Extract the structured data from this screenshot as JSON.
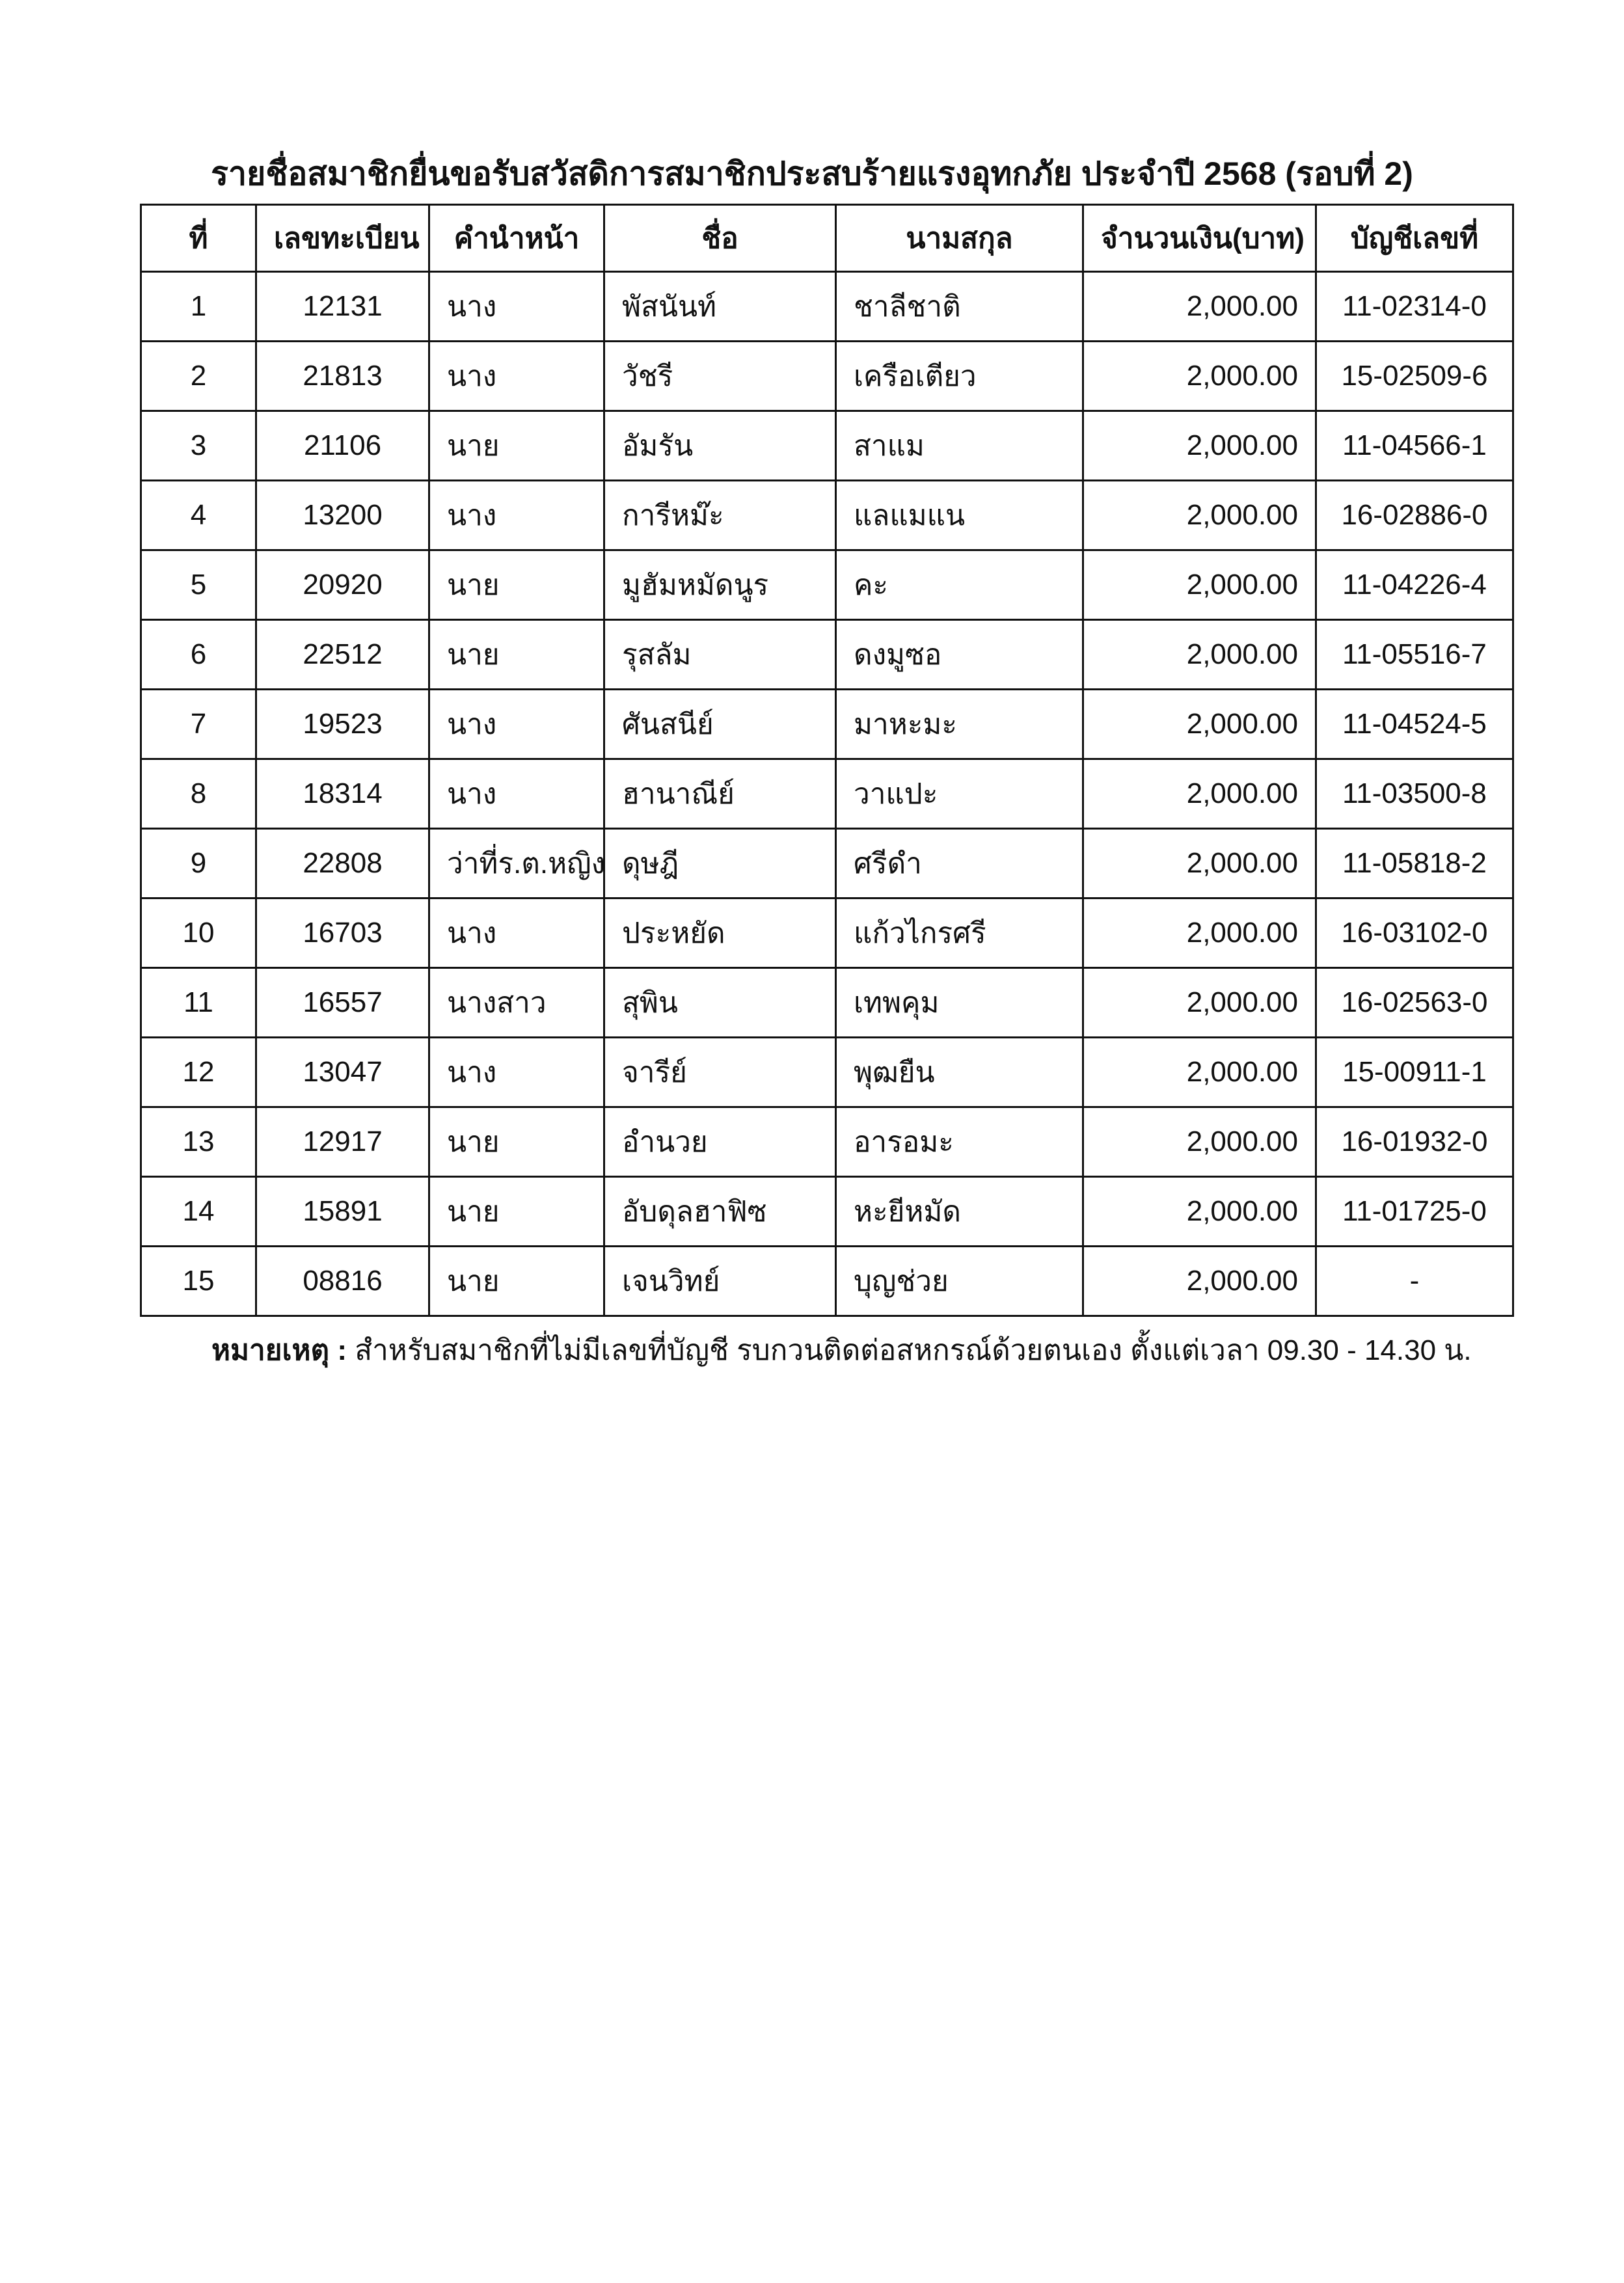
{
  "title": "รายชื่อสมาชิกยื่นขอรับสวัสดิการสมาชิกประสบร้ายแรงอุทกภัย ประจำปี 2568 (รอบที่ 2)",
  "table": {
    "headers": [
      "ที่",
      "เลขทะเบียน",
      "คำนำหน้า",
      "ชื่อ",
      "นามสกุล",
      "จำนวนเงิน(บาท)",
      "บัญชีเลขที่"
    ],
    "rows": [
      [
        "1",
        "12131",
        "นาง",
        "พัสนันท์",
        "ชาลีชาติ",
        "2,000.00",
        "11-02314-0"
      ],
      [
        "2",
        "21813",
        "นาง",
        "วัชรี",
        "เครือเตียว",
        "2,000.00",
        "15-02509-6"
      ],
      [
        "3",
        "21106",
        "นาย",
        "อัมรัน",
        "สาแม",
        "2,000.00",
        "11-04566-1"
      ],
      [
        "4",
        "13200",
        "นาง",
        "การีหม๊ะ",
        "แลแมแน",
        "2,000.00",
        "16-02886-0"
      ],
      [
        "5",
        "20920",
        "นาย",
        "มูฮัมหมัดนูร",
        "คะ",
        "2,000.00",
        "11-04226-4"
      ],
      [
        "6",
        "22512",
        "นาย",
        "รุสลัม",
        "ดงมูซอ",
        "2,000.00",
        "11-05516-7"
      ],
      [
        "7",
        "19523",
        "นาง",
        "ศันสนีย์",
        "มาหะมะ",
        "2,000.00",
        "11-04524-5"
      ],
      [
        "8",
        "18314",
        "นาง",
        "ฮานาณีย์",
        "วาแปะ",
        "2,000.00",
        "11-03500-8"
      ],
      [
        "9",
        "22808",
        "ว่าที่ร.ต.หญิง",
        "ดุษฎี",
        "ศรีดำ",
        "2,000.00",
        "11-05818-2"
      ],
      [
        "10",
        "16703",
        "นาง",
        "ประหยัด",
        "แก้วไกรศรี",
        "2,000.00",
        "16-03102-0"
      ],
      [
        "11",
        "16557",
        "นางสาว",
        "สุพิน",
        "เทพคุม",
        "2,000.00",
        "16-02563-0"
      ],
      [
        "12",
        "13047",
        "นาง",
        "จารีย์",
        "พุฒยืน",
        "2,000.00",
        "15-00911-1"
      ],
      [
        "13",
        "12917",
        "นาย",
        "อำนวย",
        "อารอมะ",
        "2,000.00",
        "16-01932-0"
      ],
      [
        "14",
        "15891",
        "นาย",
        "อับดุลฮาฟิซ",
        "หะยีหมัด",
        "2,000.00",
        "11-01725-0"
      ],
      [
        "15",
        "08816",
        "นาย",
        "เจนวิทย์",
        "บุญช่วย",
        "2,000.00",
        "-"
      ]
    ]
  },
  "note": {
    "label": "หมายเหตุ :",
    "text": " สำหรับสมาชิกที่ไม่มีเลขที่บัญชี รบกวนติดต่อสหกรณ์ด้วยตนเอง ตั้งแต่เวลา 09.30 - 14.30 น."
  }
}
